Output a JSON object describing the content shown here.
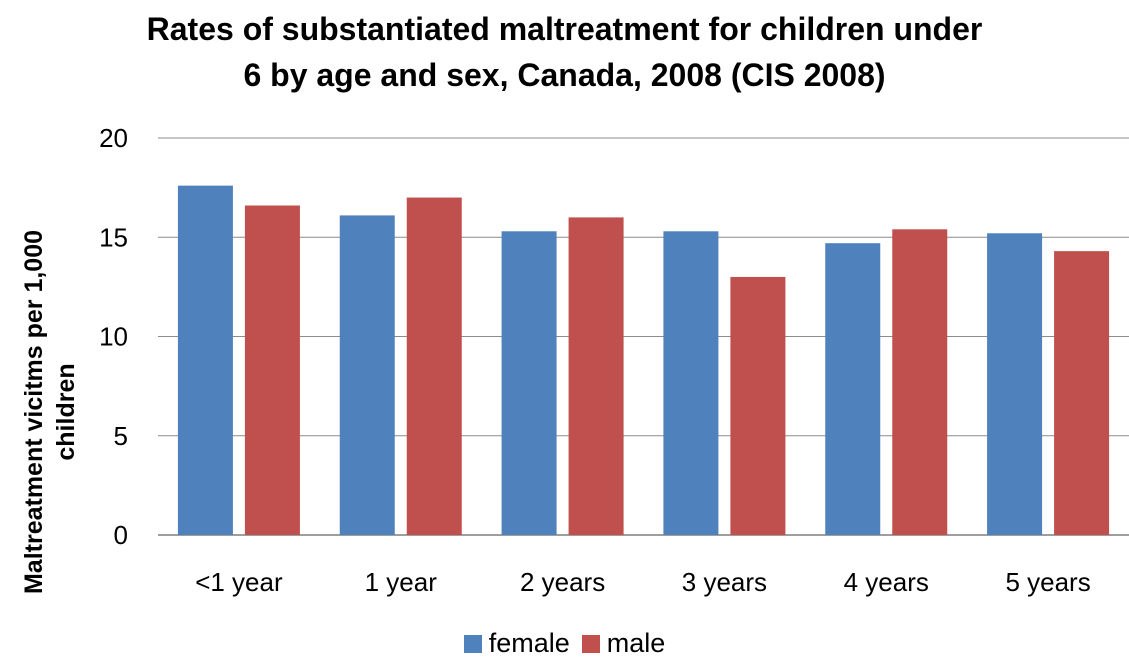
{
  "chart_data": {
    "type": "bar",
    "title_line1": "Rates of substantiated maltreatment for children under",
    "title_line2": "6 by age and sex, Canada, 2008 (CIS 2008)",
    "ylabel_line1": "Maltreatment vicitms per 1,000",
    "ylabel_line2": "children",
    "xlabel": "",
    "categories": [
      "<1 year",
      "1 year",
      "2 years",
      "3 years",
      "4 years",
      "5 years"
    ],
    "series": [
      {
        "name": "female",
        "color": "#4F81BD",
        "values": [
          17.6,
          16.1,
          15.3,
          15.3,
          14.7,
          15.2
        ]
      },
      {
        "name": "male",
        "color": "#C0504D",
        "values": [
          16.6,
          17.0,
          16.0,
          13.0,
          15.4,
          14.3
        ]
      }
    ],
    "ylim": [
      0,
      20
    ],
    "yticks": [
      0,
      5,
      10,
      15,
      20
    ],
    "grid": true,
    "legend_position": "bottom"
  }
}
